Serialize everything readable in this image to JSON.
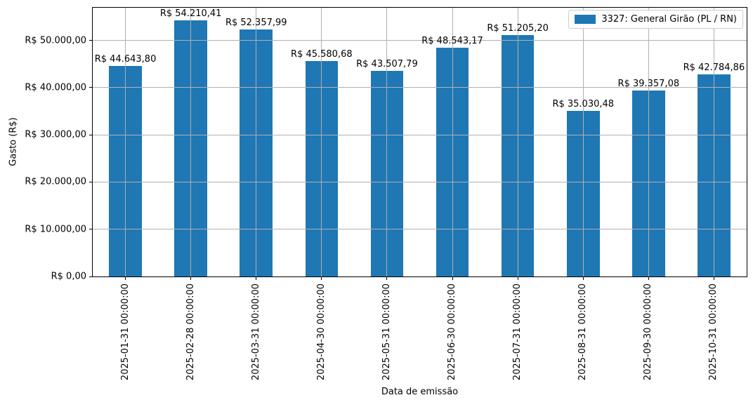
{
  "chart_data": {
    "type": "bar",
    "title": "",
    "xlabel": "Data de emissão",
    "ylabel": "Gasto (R$)",
    "series_name": "3327: General Girão (PL / RN)",
    "categories": [
      "2025-01-31 00:00:00",
      "2025-02-28 00:00:00",
      "2025-03-31 00:00:00",
      "2025-04-30 00:00:00",
      "2025-05-31 00:00:00",
      "2025-06-30 00:00:00",
      "2025-07-31 00:00:00",
      "2025-08-31 00:00:00",
      "2025-09-30 00:00:00",
      "2025-10-31 00:00:00"
    ],
    "values": [
      44643.8,
      54210.41,
      52357.99,
      45580.68,
      43507.79,
      48543.17,
      51205.2,
      35030.48,
      39357.08,
      42784.86
    ],
    "value_labels": [
      "R$ 44.643,80",
      "R$ 54.210,41",
      "R$ 52.357,99",
      "R$ 45.580,68",
      "R$ 43.507,79",
      "R$ 48.543,17",
      "R$ 51.205,20",
      "R$ 35.030,48",
      "R$ 39.357,08",
      "R$ 42.784,86"
    ],
    "yticks": [
      0,
      10000,
      20000,
      30000,
      40000,
      50000
    ],
    "ytick_labels": [
      "R$ 0,00",
      "R$ 10.000,00",
      "R$ 20.000,00",
      "R$ 30.000,00",
      "R$ 40.000,00",
      "R$ 50.000,00"
    ],
    "ylim": [
      0,
      56950
    ],
    "grid": true,
    "grid_on_top": true,
    "legend_position": "upper right",
    "bar_color": "#1f77b4",
    "grid_color": "#b0b0b0",
    "bar_width_fraction": 0.5
  }
}
